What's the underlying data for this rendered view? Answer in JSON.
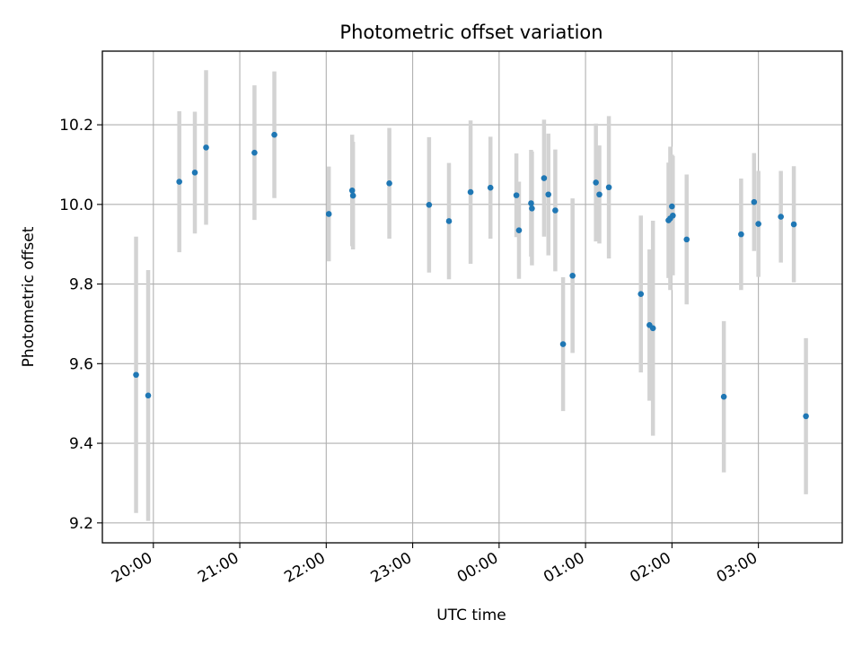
{
  "chart_data": {
    "type": "scatter",
    "title": "Photometric offset variation",
    "xlabel": "UTC time",
    "ylabel": "Photometric offset",
    "x_unit": "hours since 20:00 UTC",
    "xlim": [
      -0.59,
      7.97
    ],
    "ylim": [
      9.15,
      10.385
    ],
    "x_ticks": [
      {
        "value": 0,
        "label": "20:00"
      },
      {
        "value": 1,
        "label": "21:00"
      },
      {
        "value": 2,
        "label": "22:00"
      },
      {
        "value": 3,
        "label": "23:00"
      },
      {
        "value": 4,
        "label": "00:00"
      },
      {
        "value": 5,
        "label": "01:00"
      },
      {
        "value": 6,
        "label": "02:00"
      },
      {
        "value": 7,
        "label": "03:00"
      }
    ],
    "y_ticks": [
      {
        "value": 9.2,
        "label": "9.2"
      },
      {
        "value": 9.4,
        "label": "9.4"
      },
      {
        "value": 9.6,
        "label": "9.6"
      },
      {
        "value": 9.8,
        "label": "9.8"
      },
      {
        "value": 10.0,
        "label": "10.0"
      },
      {
        "value": 10.2,
        "label": "10.2"
      }
    ],
    "grid": true,
    "marker_color": "#1f77b4",
    "errorbar_color": "#d3d3d3",
    "points": [
      {
        "x": -0.2,
        "y": 9.572,
        "err": 0.347
      },
      {
        "x": -0.06,
        "y": 9.52,
        "err": 0.315
      },
      {
        "x": 0.3,
        "y": 10.057,
        "err": 0.177
      },
      {
        "x": 0.48,
        "y": 10.08,
        "err": 0.153
      },
      {
        "x": 0.61,
        "y": 10.143,
        "err": 0.194
      },
      {
        "x": 1.17,
        "y": 10.13,
        "err": 0.169
      },
      {
        "x": 1.4,
        "y": 10.175,
        "err": 0.159
      },
      {
        "x": 2.03,
        "y": 9.976,
        "err": 0.119
      },
      {
        "x": 2.3,
        "y": 10.035,
        "err": 0.14
      },
      {
        "x": 2.31,
        "y": 10.022,
        "err": 0.135
      },
      {
        "x": 2.73,
        "y": 10.053,
        "err": 0.139
      },
      {
        "x": 3.19,
        "y": 9.999,
        "err": 0.17
      },
      {
        "x": 3.42,
        "y": 9.958,
        "err": 0.146
      },
      {
        "x": 3.67,
        "y": 10.031,
        "err": 0.18
      },
      {
        "x": 3.9,
        "y": 10.042,
        "err": 0.128
      },
      {
        "x": 4.2,
        "y": 10.023,
        "err": 0.105
      },
      {
        "x": 4.23,
        "y": 9.935,
        "err": 0.122
      },
      {
        "x": 4.37,
        "y": 10.003,
        "err": 0.134
      },
      {
        "x": 4.38,
        "y": 9.99,
        "err": 0.143
      },
      {
        "x": 4.52,
        "y": 10.066,
        "err": 0.147
      },
      {
        "x": 4.57,
        "y": 10.025,
        "err": 0.153
      },
      {
        "x": 4.65,
        "y": 9.985,
        "err": 0.153
      },
      {
        "x": 4.74,
        "y": 9.649,
        "err": 0.168
      },
      {
        "x": 4.85,
        "y": 9.821,
        "err": 0.194
      },
      {
        "x": 5.12,
        "y": 10.055,
        "err": 0.148
      },
      {
        "x": 5.16,
        "y": 10.025,
        "err": 0.123
      },
      {
        "x": 5.27,
        "y": 10.043,
        "err": 0.179
      },
      {
        "x": 5.64,
        "y": 9.775,
        "err": 0.197
      },
      {
        "x": 5.74,
        "y": 9.697,
        "err": 0.19
      },
      {
        "x": 5.78,
        "y": 9.689,
        "err": 0.27
      },
      {
        "x": 5.96,
        "y": 9.96,
        "err": 0.145
      },
      {
        "x": 5.98,
        "y": 9.965,
        "err": 0.18
      },
      {
        "x": 6.0,
        "y": 9.995,
        "err": 0.13
      },
      {
        "x": 6.01,
        "y": 9.972,
        "err": 0.15
      },
      {
        "x": 6.17,
        "y": 9.912,
        "err": 0.163
      },
      {
        "x": 6.6,
        "y": 9.517,
        "err": 0.19
      },
      {
        "x": 6.8,
        "y": 9.925,
        "err": 0.14
      },
      {
        "x": 6.95,
        "y": 10.006,
        "err": 0.123
      },
      {
        "x": 7.0,
        "y": 9.951,
        "err": 0.133
      },
      {
        "x": 7.26,
        "y": 9.969,
        "err": 0.115
      },
      {
        "x": 7.41,
        "y": 9.95,
        "err": 0.146
      },
      {
        "x": 7.55,
        "y": 9.468,
        "err": 0.196
      }
    ]
  }
}
